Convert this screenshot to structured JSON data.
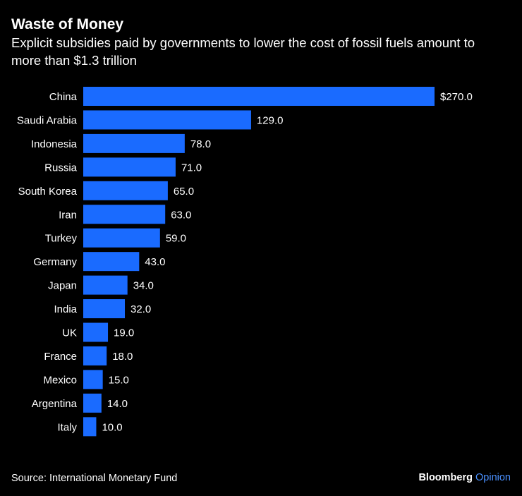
{
  "header": {
    "title": "Waste of Money",
    "subtitle": "Explicit subsidies paid by governments to lower the cost of fossil fuels amount to more than $1.3 trillion"
  },
  "footer": {
    "source": "Source: International Monetary Fund",
    "brand_main": "Bloomberg",
    "brand_secondary": "Opinion"
  },
  "colors": {
    "background": "#000000",
    "bar": "#1A6BFF",
    "text": "#ffffff",
    "brand_accent": "#4A90FF"
  },
  "chart_data": {
    "type": "bar",
    "orientation": "horizontal",
    "title": "Waste of Money",
    "subtitle": "Explicit subsidies paid by governments to lower the cost of fossil fuels amount to more than $1.3 trillion",
    "categories": [
      "China",
      "Saudi Arabia",
      "Indonesia",
      "Russia",
      "South Korea",
      "Iran",
      "Turkey",
      "Germany",
      "Japan",
      "India",
      "UK",
      "France",
      "Mexico",
      "Argentina",
      "Italy"
    ],
    "values": [
      270.0,
      129.0,
      78.0,
      71.0,
      65.0,
      63.0,
      59.0,
      43.0,
      34.0,
      32.0,
      19.0,
      18.0,
      15.0,
      14.0,
      10.0
    ],
    "value_labels": [
      "$270.0",
      "129.0",
      "78.0",
      "71.0",
      "65.0",
      "63.0",
      "59.0",
      "43.0",
      "34.0",
      "32.0",
      "19.0",
      "18.0",
      "15.0",
      "14.0",
      "10.0"
    ],
    "xlim": [
      0,
      270
    ],
    "grid": false,
    "legend": "none"
  }
}
